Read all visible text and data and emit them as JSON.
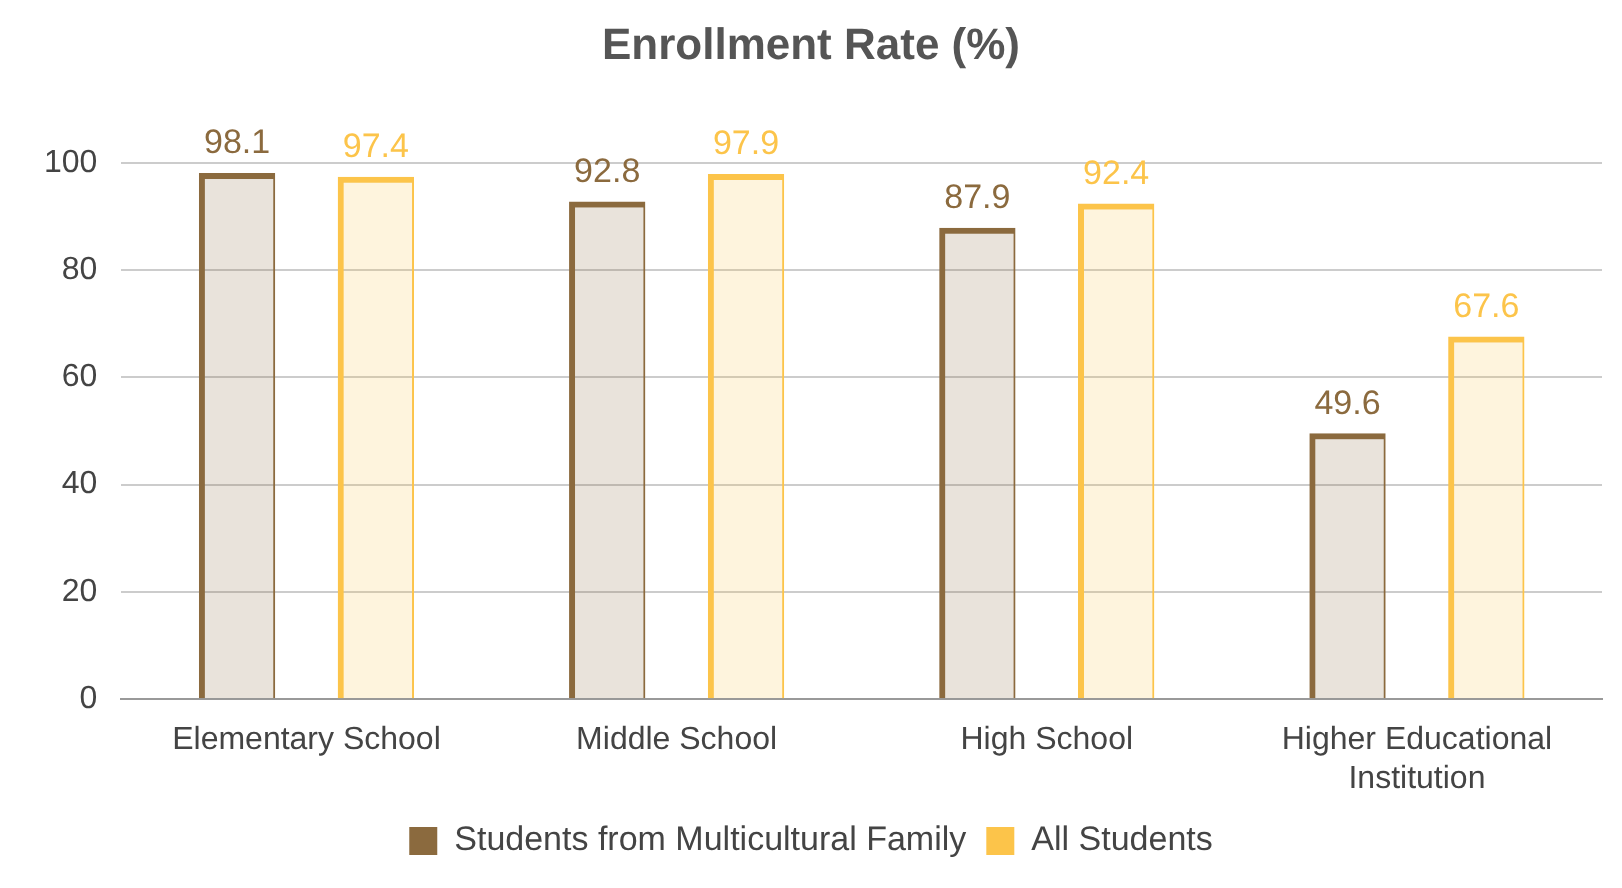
{
  "chart_data": {
    "type": "bar",
    "title": "Enrollment Rate (%)",
    "categories": [
      "Elementary School",
      "Middle School",
      "High School",
      "Higher Educational Institution"
    ],
    "series": [
      {
        "name": "Students from Multicultural Family",
        "color": "#8b6a3e",
        "values": [
          98.1,
          92.8,
          87.9,
          49.6
        ]
      },
      {
        "name": "All Students",
        "color": "#fcc44a",
        "values": [
          97.4,
          97.9,
          92.4,
          67.6
        ]
      }
    ],
    "ylim": [
      0,
      100
    ],
    "yticks": [
      0,
      20,
      40,
      60,
      80,
      100
    ],
    "grid": "y",
    "legend": "bottom",
    "data_labels": true
  }
}
